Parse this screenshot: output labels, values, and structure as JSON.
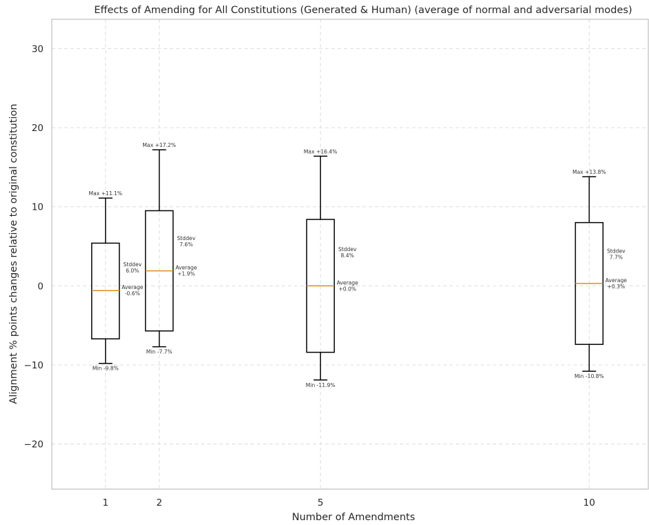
{
  "chart_data": {
    "type": "box",
    "title": "Effects of Amending for All Constitutions (Generated & Human) (average of normal and adversarial modes)",
    "xlabel": "Number of Amendments",
    "ylabel": "Alignment % points changes relative to original constitution",
    "xlim": [
      0,
      11.1
    ],
    "ylim": [
      -25.7,
      33.7
    ],
    "x_ticks": [
      1,
      2,
      5,
      10
    ],
    "x_tick_labels": [
      "1",
      "2",
      "5",
      "10"
    ],
    "y_ticks": [
      -20,
      -10,
      0,
      10,
      20,
      30
    ],
    "y_tick_labels": [
      "−20",
      "−10",
      "0",
      "10",
      "20",
      "30"
    ],
    "grid": true,
    "colors": {
      "box": "#000000",
      "median": "#e08a1e",
      "grid": "#dcdcdc",
      "frame": "#bdbdbd"
    },
    "boxes": [
      {
        "x": 1,
        "min": -9.8,
        "q1": -6.7,
        "median": -0.6,
        "q3": 5.4,
        "max": 11.1,
        "max_label": "Max +11.1%",
        "min_label": "Min -9.8%",
        "stddev_label": [
          "Stddev",
          "6.0%"
        ],
        "stddev_y": 2.3,
        "average_label": [
          "Average",
          "-0.6%"
        ],
        "average_y": -0.6
      },
      {
        "x": 2,
        "min": -7.7,
        "q1": -5.7,
        "median": 1.9,
        "q3": 9.5,
        "max": 17.2,
        "max_label": "Max +17.2%",
        "min_label": "Min -7.7%",
        "stddev_label": [
          "Stddev",
          "7.6%"
        ],
        "stddev_y": 5.6,
        "average_label": [
          "Average",
          "+1.9%"
        ],
        "average_y": 1.9
      },
      {
        "x": 5,
        "min": -11.9,
        "q1": -8.4,
        "median": 0.0,
        "q3": 8.4,
        "max": 16.4,
        "max_label": "Max +16.4%",
        "min_label": "Min -11.9%",
        "stddev_label": [
          "Stddev",
          "8.4%"
        ],
        "stddev_y": 4.2,
        "average_label": [
          "Average",
          "+0.0%"
        ],
        "average_y": 0.0
      },
      {
        "x": 10,
        "min": -10.8,
        "q1": -7.4,
        "median": 0.3,
        "q3": 8.0,
        "max": 13.8,
        "max_label": "Max +13.8%",
        "min_label": "Min -10.8%",
        "stddev_label": [
          "Stddev",
          "7.7%"
        ],
        "stddev_y": 4.0,
        "average_label": [
          "Average",
          "+0.3%"
        ],
        "average_y": 0.3
      }
    ]
  }
}
